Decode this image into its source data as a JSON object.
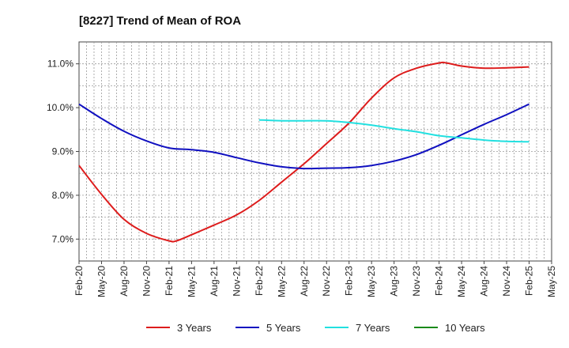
{
  "chart_data": {
    "type": "line",
    "title": "[8227]  Trend of Mean of ROA",
    "xlabel": "",
    "ylabel": "",
    "ylim": [
      6.5,
      11.5
    ],
    "y_ticks": [
      7.0,
      8.0,
      9.0,
      10.0,
      11.0
    ],
    "y_tick_labels": [
      "7.0%",
      "8.0%",
      "9.0%",
      "10.0%",
      "11.0%"
    ],
    "x_ticks": [
      "Feb-20",
      "May-20",
      "Aug-20",
      "Nov-20",
      "Feb-21",
      "May-21",
      "Aug-21",
      "Nov-21",
      "Feb-22",
      "May-22",
      "Aug-22",
      "Nov-22",
      "Feb-23",
      "May-23",
      "Aug-23",
      "Nov-23",
      "Feb-24",
      "May-24",
      "Aug-24",
      "Nov-24",
      "Feb-25",
      "May-25"
    ],
    "grid": true,
    "legend_position": "bottom",
    "series": [
      {
        "name": "3 Years",
        "color": "#dd1c1c",
        "x": [
          "Feb-20",
          "May-20",
          "Aug-20",
          "Nov-20",
          "Feb-21",
          "Mar-21",
          "May-21",
          "Aug-21",
          "Nov-21",
          "Feb-22",
          "May-22",
          "Aug-22",
          "Nov-22",
          "Feb-23",
          "May-23",
          "Aug-23",
          "Nov-23",
          "Feb-24",
          "Mar-24",
          "May-24",
          "Aug-24",
          "Nov-24",
          "Feb-25"
        ],
        "values": [
          8.68,
          8.02,
          7.45,
          7.13,
          6.96,
          6.96,
          7.1,
          7.32,
          7.55,
          7.88,
          8.3,
          8.72,
          9.18,
          9.65,
          10.22,
          10.68,
          10.9,
          11.02,
          11.02,
          10.95,
          10.9,
          10.91,
          10.93
        ]
      },
      {
        "name": "5 Years",
        "color": "#1010c0",
        "x": [
          "Feb-20",
          "May-20",
          "Aug-20",
          "Nov-20",
          "Feb-21",
          "May-21",
          "Aug-21",
          "Nov-21",
          "Feb-22",
          "May-22",
          "Aug-22",
          "Nov-22",
          "Feb-23",
          "May-23",
          "Aug-23",
          "Nov-23",
          "Feb-24",
          "May-24",
          "Aug-24",
          "Nov-24",
          "Feb-25"
        ],
        "values": [
          10.08,
          9.75,
          9.46,
          9.24,
          9.08,
          9.04,
          8.98,
          8.86,
          8.74,
          8.65,
          8.61,
          8.62,
          8.63,
          8.68,
          8.78,
          8.93,
          9.14,
          9.38,
          9.62,
          9.84,
          10.08
        ]
      },
      {
        "name": "7 Years",
        "color": "#22e0e0",
        "x": [
          "Feb-22",
          "May-22",
          "Aug-22",
          "Nov-22",
          "Feb-23",
          "May-23",
          "Aug-23",
          "Nov-23",
          "Feb-24",
          "May-24",
          "Aug-24",
          "Nov-24",
          "Feb-25"
        ],
        "values": [
          9.72,
          9.7,
          9.7,
          9.7,
          9.66,
          9.6,
          9.52,
          9.45,
          9.36,
          9.31,
          9.26,
          9.23,
          9.22
        ]
      },
      {
        "name": "10 Years",
        "color": "#1a8a1a",
        "x": [],
        "values": []
      }
    ]
  }
}
